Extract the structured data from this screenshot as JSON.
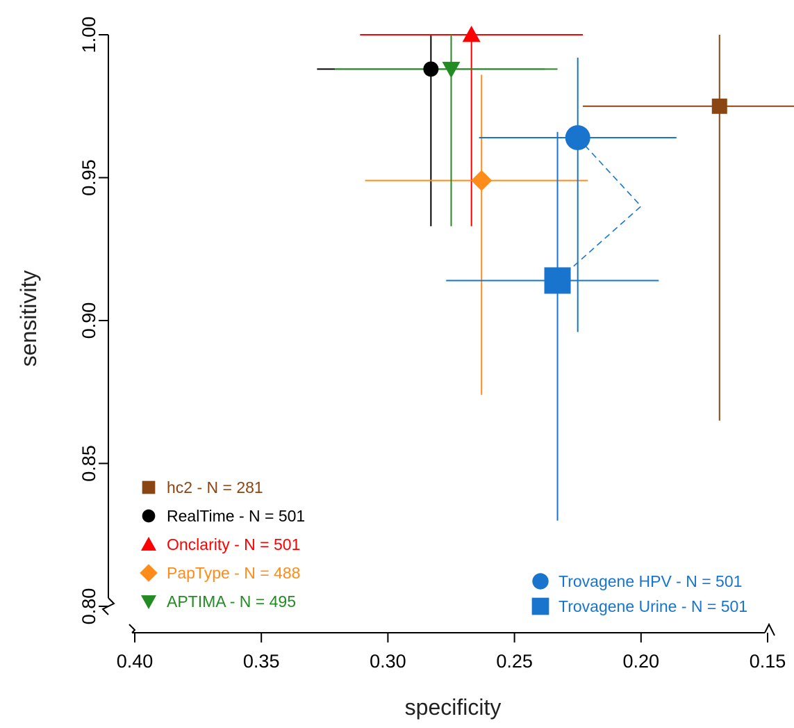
{
  "chart_data": {
    "type": "scatter",
    "title": "",
    "xlabel": "specificity",
    "ylabel": "sensitivity",
    "xlim": [
      0.4,
      0.15
    ],
    "ylim": [
      0.8,
      1.0
    ],
    "x_reversed": true,
    "x_ticks": [
      "0.40",
      "0.35",
      "0.30",
      "0.25",
      "0.20",
      "0.15"
    ],
    "y_ticks": [
      "0.80",
      "0.85",
      "0.90",
      "0.95",
      "1.00"
    ],
    "axis_breaks": true,
    "grid": false,
    "series": [
      {
        "name": "hc2 - N = 281",
        "color": "#8B4513",
        "marker": "square",
        "x": 0.169,
        "y": 0.975,
        "x_ci": [
          0.223,
          0.115
        ],
        "y_ci": [
          0.865,
          1.0
        ]
      },
      {
        "name": "RealTime - N = 501",
        "color": "#000000",
        "marker": "circle",
        "x": 0.283,
        "y": 0.988,
        "x_ci": [
          0.328,
          0.238
        ],
        "y_ci": [
          0.933,
          1.0
        ]
      },
      {
        "name": "Onclarity - N = 501",
        "color": "#FF0000",
        "marker": "triangle-up",
        "x": 0.267,
        "y": 1.0,
        "x_ci": [
          0.311,
          0.223
        ],
        "y_ci": [
          0.933,
          1.0
        ]
      },
      {
        "name": "PapType - N = 488",
        "color": "#FF8C1A",
        "marker": "diamond",
        "x": 0.263,
        "y": 0.949,
        "x_ci": [
          0.309,
          0.221
        ],
        "y_ci": [
          0.874,
          0.986
        ]
      },
      {
        "name": "APTIMA - N = 495",
        "color": "#228B22",
        "marker": "triangle-down",
        "x": 0.275,
        "y": 0.988,
        "x_ci": [
          0.321,
          0.233
        ],
        "y_ci": [
          0.933,
          1.0
        ]
      },
      {
        "name": "Trovagene HPV - N = 501",
        "color": "#1874CD",
        "marker": "circle-large",
        "x": 0.225,
        "y": 0.964,
        "x_ci": [
          0.264,
          0.186
        ],
        "y_ci": [
          0.896,
          0.992
        ]
      },
      {
        "name": "Trovagene Urine - N = 501",
        "color": "#1874CD",
        "marker": "square-large",
        "x": 0.233,
        "y": 0.914,
        "x_ci": [
          0.277,
          0.193
        ],
        "y_ci": [
          0.83,
          0.966
        ]
      }
    ],
    "connector": {
      "from": "Trovagene HPV - N = 501",
      "to": "Trovagene Urine - N = 501",
      "via": {
        "x": 0.2,
        "y": 0.94
      },
      "color": "#1874CD",
      "style": "dashed"
    },
    "legend_left": [
      "hc2 - N = 281",
      "RealTime - N = 501",
      "Onclarity - N = 501",
      "PapType - N = 488",
      "APTIMA - N = 495"
    ],
    "legend_right": [
      "Trovagene HPV - N = 501",
      "Trovagene Urine - N = 501"
    ],
    "legend_placement": "bottom-left and bottom-right"
  }
}
